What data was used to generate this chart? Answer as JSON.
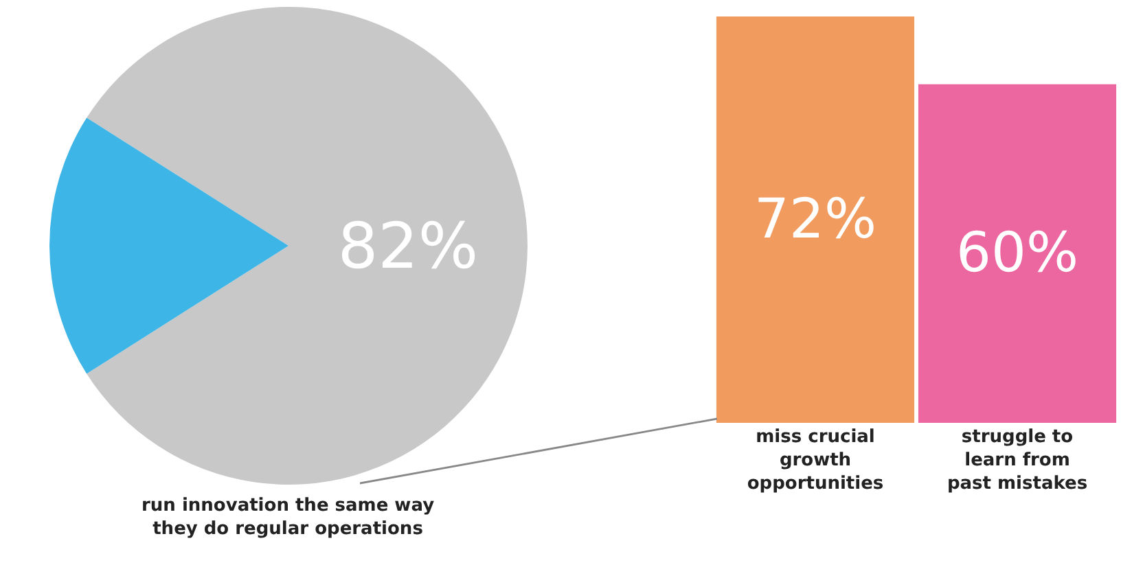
{
  "chart_data": [
    {
      "type": "pie",
      "categories": [
        "run innovation the same way they do regular operations",
        null
      ],
      "values": [
        82,
        18
      ],
      "colors": [
        "#c8c8c8",
        "#3db5e6"
      ],
      "value_labels": [
        "82%",
        null
      ]
    },
    {
      "type": "bar",
      "categories": [
        "miss crucial growth opportunities",
        "struggle to learn from past mistakes"
      ],
      "values": [
        72,
        60
      ],
      "colors": [
        "#f29b5e",
        "#ec67a0"
      ],
      "value_labels": [
        "72%",
        "60%"
      ],
      "ylim": [
        0,
        72
      ],
      "tick_labels": "x"
    }
  ]
}
